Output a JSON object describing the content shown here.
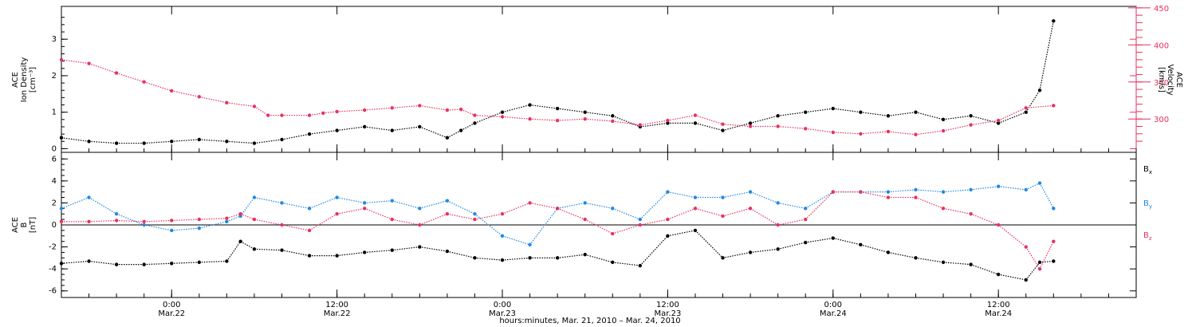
{
  "chart_data": [
    {
      "type": "scatter",
      "panel": "top",
      "ylabel_left": [
        "ACE",
        "Ion Density",
        "[cm⁻³]"
      ],
      "ylabel_right": [
        "ACE",
        "Velocity",
        "[km/s]"
      ],
      "yticks_left": [
        "0",
        "1",
        "2",
        "3"
      ],
      "ylim_left": [
        -0.1,
        3.9
      ],
      "yticks_right": [
        "300",
        "350",
        "400",
        "450"
      ],
      "ylim_right": [
        255,
        452
      ],
      "right_axis_color": "#e8305f",
      "x_hours_range": [
        0,
        78
      ],
      "series": [
        {
          "name": "Ion Density",
          "axis": "left",
          "color": "#000000",
          "x": [
            0,
            2,
            4,
            6,
            8,
            10,
            12,
            14,
            16,
            18,
            20,
            22,
            24,
            26,
            28,
            29,
            30,
            32,
            34,
            36,
            38,
            40,
            42,
            44,
            46,
            48,
            50,
            52,
            54,
            56,
            58,
            60,
            62,
            64,
            66,
            68,
            70,
            71,
            72
          ],
          "y": [
            0.3,
            0.2,
            0.15,
            0.15,
            0.2,
            0.25,
            0.2,
            0.15,
            0.25,
            0.4,
            0.5,
            0.6,
            0.5,
            0.6,
            0.3,
            0.5,
            0.7,
            1.0,
            1.2,
            1.1,
            1.0,
            0.9,
            0.6,
            0.7,
            0.7,
            0.5,
            0.7,
            0.9,
            1.0,
            1.1,
            1.0,
            0.9,
            1.0,
            0.8,
            0.9,
            0.7,
            1.0,
            1.6,
            3.5
          ]
        },
        {
          "name": "Velocity",
          "axis": "right",
          "color": "#e8305f",
          "x": [
            0,
            2,
            4,
            6,
            8,
            10,
            12,
            14,
            15,
            16,
            18,
            19,
            20,
            22,
            24,
            26,
            28,
            29,
            30,
            32,
            34,
            36,
            38,
            40,
            42,
            44,
            46,
            48,
            50,
            52,
            54,
            56,
            58,
            60,
            62,
            64,
            66,
            68,
            70,
            72
          ],
          "y": [
            380,
            375,
            362,
            350,
            338,
            330,
            322,
            317,
            305,
            305,
            305,
            308,
            310,
            312,
            315,
            318,
            312,
            313,
            305,
            303,
            300,
            298,
            300,
            297,
            292,
            298,
            305,
            293,
            290,
            290,
            287,
            282,
            280,
            283,
            279,
            284,
            292,
            298,
            315,
            318
          ]
        }
      ]
    },
    {
      "type": "scatter",
      "panel": "bottom",
      "ylabel": [
        "ACE",
        "B",
        "[nT]"
      ],
      "yticks": [
        "-6",
        "-4",
        "-2",
        "0",
        "2",
        "4",
        "6"
      ],
      "ylim": [
        -6.6,
        6.6
      ],
      "zero_line": true,
      "x_hours_range": [
        0,
        78
      ],
      "xticks": [
        "0:00",
        "12:00",
        "0:00",
        "12:00",
        "0:00",
        "12:00"
      ],
      "xtick_dates": [
        "Mar.22",
        "Mar.22",
        "Mar.23",
        "Mar.23",
        "Mar.24",
        "Mar.24"
      ],
      "xtick_hours": [
        8,
        20,
        32,
        44,
        56,
        68
      ],
      "xlabel": "hours:minutes, Mar. 21, 2010 – Mar. 24, 2010",
      "series": [
        {
          "name": "B",
          "sub": "x",
          "color": "#000000",
          "x": [
            0,
            2,
            4,
            6,
            8,
            10,
            12,
            13,
            14,
            16,
            18,
            20,
            22,
            24,
            26,
            28,
            30,
            32,
            34,
            36,
            38,
            40,
            42,
            44,
            46,
            48,
            50,
            52,
            54,
            56,
            58,
            60,
            62,
            64,
            66,
            68,
            70,
            71,
            72
          ],
          "y": [
            -3.5,
            -3.3,
            -3.6,
            -3.6,
            -3.5,
            -3.4,
            -3.3,
            -1.5,
            -2.2,
            -2.3,
            -2.8,
            -2.8,
            -2.5,
            -2.3,
            -2.0,
            -2.4,
            -3.0,
            -3.2,
            -3.0,
            -3.0,
            -2.7,
            -3.4,
            -3.7,
            -1.0,
            -0.5,
            -3.0,
            -2.5,
            -2.2,
            -1.6,
            -1.2,
            -1.8,
            -2.5,
            -3.0,
            -3.4,
            -3.6,
            -4.5,
            -5.0,
            -3.4,
            -3.3
          ]
        },
        {
          "name": "B",
          "sub": "y",
          "color": "#1e88e5",
          "x": [
            0,
            2,
            4,
            6,
            8,
            10,
            12,
            13,
            14,
            16,
            18,
            20,
            22,
            24,
            26,
            28,
            30,
            32,
            34,
            36,
            38,
            40,
            42,
            44,
            46,
            48,
            50,
            52,
            54,
            56,
            58,
            60,
            62,
            64,
            66,
            68,
            70,
            71,
            72
          ],
          "y": [
            1.5,
            2.5,
            1.0,
            0.0,
            -0.5,
            -0.3,
            0.3,
            0.8,
            2.5,
            2.0,
            1.5,
            2.5,
            2.0,
            2.2,
            1.5,
            2.2,
            1.0,
            -1.0,
            -1.8,
            1.5,
            2.0,
            1.5,
            0.5,
            3.0,
            2.5,
            2.5,
            3.0,
            2.0,
            1.5,
            3.0,
            3.0,
            3.0,
            3.2,
            3.0,
            3.2,
            3.5,
            3.2,
            3.8,
            1.5
          ]
        },
        {
          "name": "B",
          "sub": "z",
          "color": "#e8305f",
          "x": [
            0,
            2,
            4,
            6,
            8,
            10,
            12,
            13,
            14,
            16,
            18,
            20,
            22,
            24,
            26,
            28,
            30,
            32,
            34,
            36,
            38,
            40,
            42,
            44,
            46,
            48,
            50,
            52,
            54,
            56,
            58,
            60,
            62,
            64,
            66,
            68,
            70,
            71,
            72
          ],
          "y": [
            0.3,
            0.3,
            0.4,
            0.3,
            0.4,
            0.5,
            0.6,
            1.0,
            0.5,
            0.0,
            -0.5,
            1.0,
            1.5,
            0.5,
            0.0,
            1.0,
            0.5,
            1.0,
            2.0,
            1.5,
            0.5,
            -0.8,
            0.0,
            0.5,
            1.5,
            0.8,
            1.5,
            0.0,
            0.5,
            3.0,
            3.0,
            2.5,
            2.5,
            1.5,
            1.0,
            0.0,
            -2.0,
            -4.0,
            -1.5
          ]
        }
      ]
    }
  ]
}
